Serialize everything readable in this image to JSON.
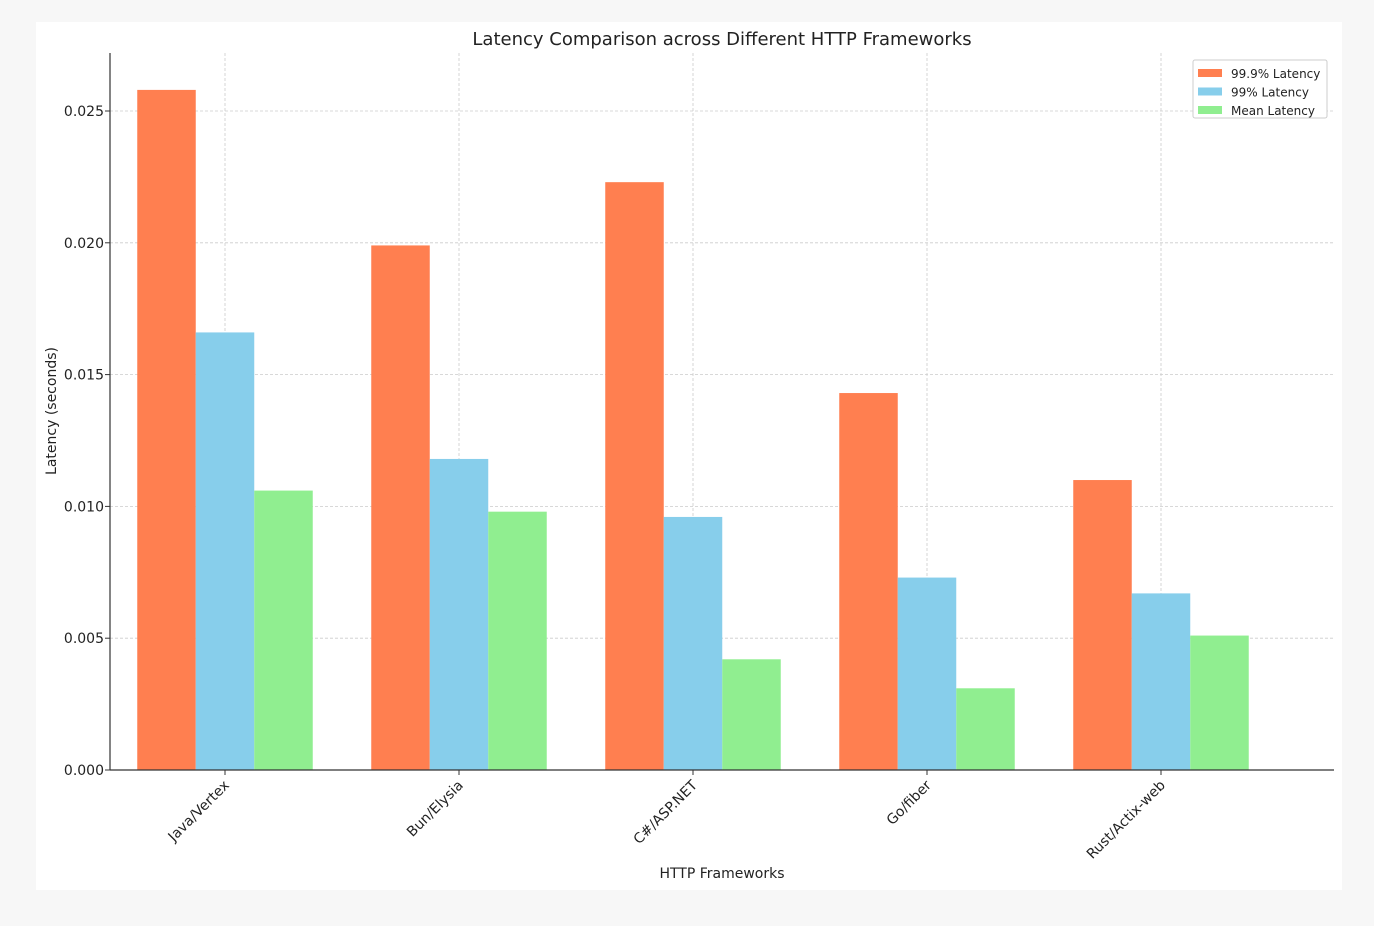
{
  "chart_data": {
    "type": "bar",
    "title": "Latency Comparison across Different HTTP Frameworks",
    "xlabel": "HTTP Frameworks",
    "ylabel": "Latency (seconds)",
    "categories": [
      "Java/Vertex",
      "Bun/Elysia",
      "C#/ASP.NET",
      "Go/fiber",
      "Rust/Actix-web"
    ],
    "ylim": [
      0,
      0.0272
    ],
    "yticks": [
      "0.000",
      "0.005",
      "0.010",
      "0.015",
      "0.020",
      "0.025"
    ],
    "ytick_values": [
      0,
      0.005,
      0.01,
      0.015,
      0.02,
      0.025
    ],
    "grid": true,
    "legend_position": "top-right",
    "series": [
      {
        "name": "99.9% Latency",
        "color": "#ff7f50",
        "values": [
          0.0258,
          0.0199,
          0.0223,
          0.0143,
          0.011
        ]
      },
      {
        "name": "99% Latency",
        "color": "#87ceeb",
        "values": [
          0.0166,
          0.0118,
          0.0096,
          0.0073,
          0.0067
        ]
      },
      {
        "name": "Mean Latency",
        "color": "#90ee90",
        "values": [
          0.0106,
          0.0098,
          0.0042,
          0.0031,
          0.0051
        ]
      }
    ]
  }
}
